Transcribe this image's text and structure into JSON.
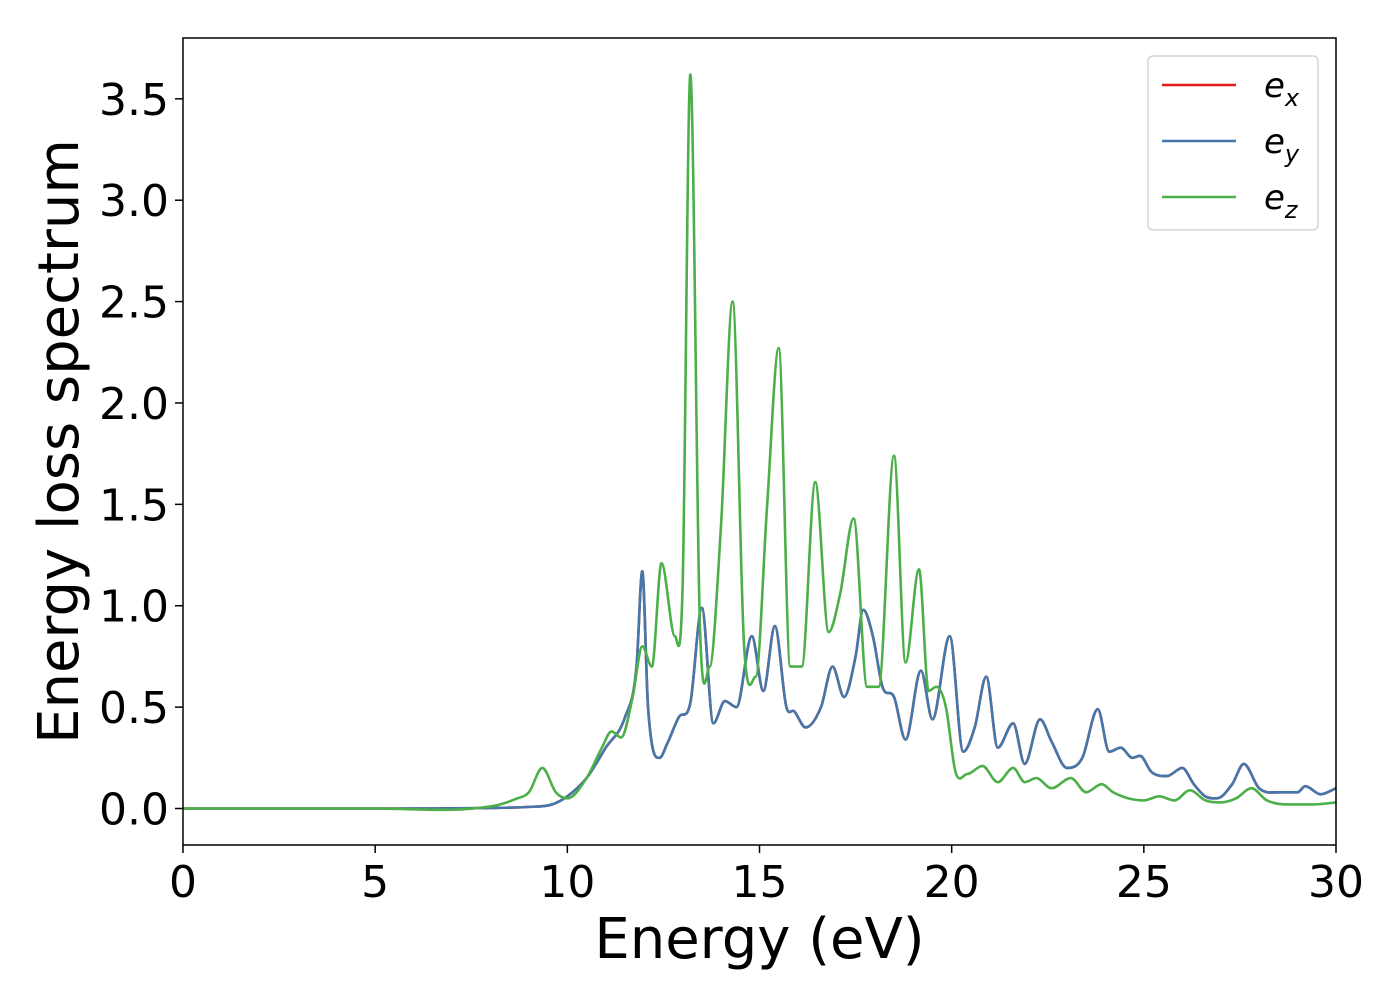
{
  "chart_data": {
    "type": "line",
    "title": "",
    "xlabel": "Energy (eV)",
    "ylabel": "Energy loss spectrum",
    "xlim": [
      0,
      30
    ],
    "ylim": [
      -0.18,
      3.8
    ],
    "xticks": [
      0,
      5,
      10,
      15,
      20,
      25,
      30
    ],
    "yticks": [
      0.0,
      0.5,
      1.0,
      1.5,
      2.0,
      2.5,
      3.0,
      3.5
    ],
    "xtick_labels": [
      "0",
      "5",
      "10",
      "15",
      "20",
      "25",
      "30"
    ],
    "ytick_labels": [
      "0.0",
      "0.5",
      "1.0",
      "1.5",
      "2.0",
      "2.5",
      "3.0",
      "3.5"
    ],
    "grid": false,
    "legend_position": "top-right",
    "series": [
      {
        "name": "e",
        "sub": "x",
        "color": "#e41a1c",
        "x": [
          0,
          5,
          8,
          9,
          9.6,
          10,
          10.5,
          11,
          11.5,
          11.8,
          11.95,
          12.1,
          12.4,
          12.6,
          12.9,
          13.2,
          13.5,
          13.8,
          14.1,
          14.4,
          14.8,
          15.1,
          15.4,
          15.7,
          15.9,
          16.2,
          16.6,
          16.9,
          17.2,
          17.5,
          17.7,
          17.95,
          18.2,
          18.5,
          18.8,
          19.2,
          19.5,
          19.95,
          20.3,
          20.6,
          20.9,
          21.2,
          21.6,
          21.9,
          22.3,
          22.6,
          23.0,
          23.4,
          23.8,
          24.1,
          24.4,
          24.7,
          24.9,
          25.2,
          25.6,
          26.0,
          26.3,
          26.6,
          26.9,
          27.3,
          27.6,
          28.0,
          28.5,
          29.0,
          29.2,
          29.6,
          30.0
        ],
        "y": [
          0.0,
          0.0,
          0.003,
          0.008,
          0.02,
          0.06,
          0.15,
          0.3,
          0.45,
          0.7,
          1.17,
          0.5,
          0.25,
          0.32,
          0.45,
          0.52,
          0.99,
          0.42,
          0.53,
          0.5,
          0.85,
          0.58,
          0.9,
          0.5,
          0.48,
          0.4,
          0.5,
          0.7,
          0.55,
          0.75,
          0.98,
          0.85,
          0.6,
          0.55,
          0.34,
          0.68,
          0.44,
          0.85,
          0.28,
          0.4,
          0.65,
          0.3,
          0.42,
          0.22,
          0.44,
          0.33,
          0.2,
          0.25,
          0.49,
          0.28,
          0.3,
          0.25,
          0.26,
          0.18,
          0.16,
          0.2,
          0.12,
          0.06,
          0.05,
          0.12,
          0.22,
          0.1,
          0.08,
          0.08,
          0.11,
          0.07,
          0.1
        ]
      },
      {
        "name": "e",
        "sub": "y",
        "color": "#4477aa",
        "x": [
          0,
          5,
          8,
          9,
          9.6,
          10,
          10.5,
          11,
          11.5,
          11.8,
          11.95,
          12.1,
          12.4,
          12.6,
          12.9,
          13.2,
          13.5,
          13.8,
          14.1,
          14.4,
          14.8,
          15.1,
          15.4,
          15.7,
          15.9,
          16.2,
          16.6,
          16.9,
          17.2,
          17.5,
          17.7,
          17.95,
          18.2,
          18.5,
          18.8,
          19.2,
          19.5,
          19.95,
          20.3,
          20.6,
          20.9,
          21.2,
          21.6,
          21.9,
          22.3,
          22.6,
          23.0,
          23.4,
          23.8,
          24.1,
          24.4,
          24.7,
          24.9,
          25.2,
          25.6,
          26.0,
          26.3,
          26.6,
          26.9,
          27.3,
          27.6,
          28.0,
          28.5,
          29.0,
          29.2,
          29.6,
          30.0
        ],
        "y": [
          0.0,
          0.0,
          0.003,
          0.008,
          0.02,
          0.06,
          0.15,
          0.3,
          0.45,
          0.7,
          1.17,
          0.5,
          0.25,
          0.32,
          0.45,
          0.52,
          0.99,
          0.42,
          0.53,
          0.5,
          0.85,
          0.58,
          0.9,
          0.5,
          0.48,
          0.4,
          0.5,
          0.7,
          0.55,
          0.75,
          0.98,
          0.85,
          0.6,
          0.55,
          0.34,
          0.68,
          0.44,
          0.85,
          0.28,
          0.4,
          0.65,
          0.3,
          0.42,
          0.22,
          0.44,
          0.33,
          0.2,
          0.25,
          0.49,
          0.28,
          0.3,
          0.25,
          0.26,
          0.18,
          0.16,
          0.2,
          0.12,
          0.06,
          0.05,
          0.12,
          0.22,
          0.1,
          0.08,
          0.08,
          0.11,
          0.07,
          0.1
        ]
      },
      {
        "name": "e",
        "sub": "z",
        "color": "#4daf4a",
        "x": [
          0,
          5,
          8,
          8.7,
          9.0,
          9.35,
          9.7,
          10,
          10.5,
          10.9,
          11.15,
          11.4,
          11.7,
          11.95,
          12.2,
          12.45,
          12.8,
          13.0,
          13.2,
          13.45,
          13.7,
          14.0,
          14.3,
          14.6,
          14.9,
          15.2,
          15.5,
          15.8,
          16.1,
          16.45,
          16.8,
          17.1,
          17.45,
          17.8,
          18.1,
          18.5,
          18.8,
          19.15,
          19.4,
          19.6,
          19.85,
          20.1,
          20.4,
          20.8,
          21.2,
          21.6,
          21.9,
          22.2,
          22.6,
          23.1,
          23.5,
          23.9,
          24.2,
          24.6,
          25.0,
          25.4,
          25.8,
          26.2,
          26.6,
          27.0,
          27.4,
          27.8,
          28.2,
          28.8,
          29.4,
          30.0
        ],
        "y": [
          0.0,
          0.0,
          0.01,
          0.05,
          0.08,
          0.2,
          0.08,
          0.05,
          0.15,
          0.3,
          0.38,
          0.35,
          0.55,
          0.8,
          0.7,
          1.21,
          0.85,
          1.1,
          3.62,
          0.9,
          0.7,
          1.4,
          2.5,
          0.8,
          0.65,
          1.5,
          2.27,
          0.7,
          0.7,
          1.61,
          0.87,
          1.06,
          1.43,
          0.6,
          0.6,
          1.74,
          0.72,
          1.18,
          0.58,
          0.6,
          0.5,
          0.18,
          0.17,
          0.21,
          0.13,
          0.2,
          0.13,
          0.15,
          0.1,
          0.15,
          0.08,
          0.12,
          0.08,
          0.05,
          0.04,
          0.06,
          0.04,
          0.09,
          0.04,
          0.03,
          0.05,
          0.1,
          0.04,
          0.02,
          0.02,
          0.03
        ]
      }
    ]
  }
}
